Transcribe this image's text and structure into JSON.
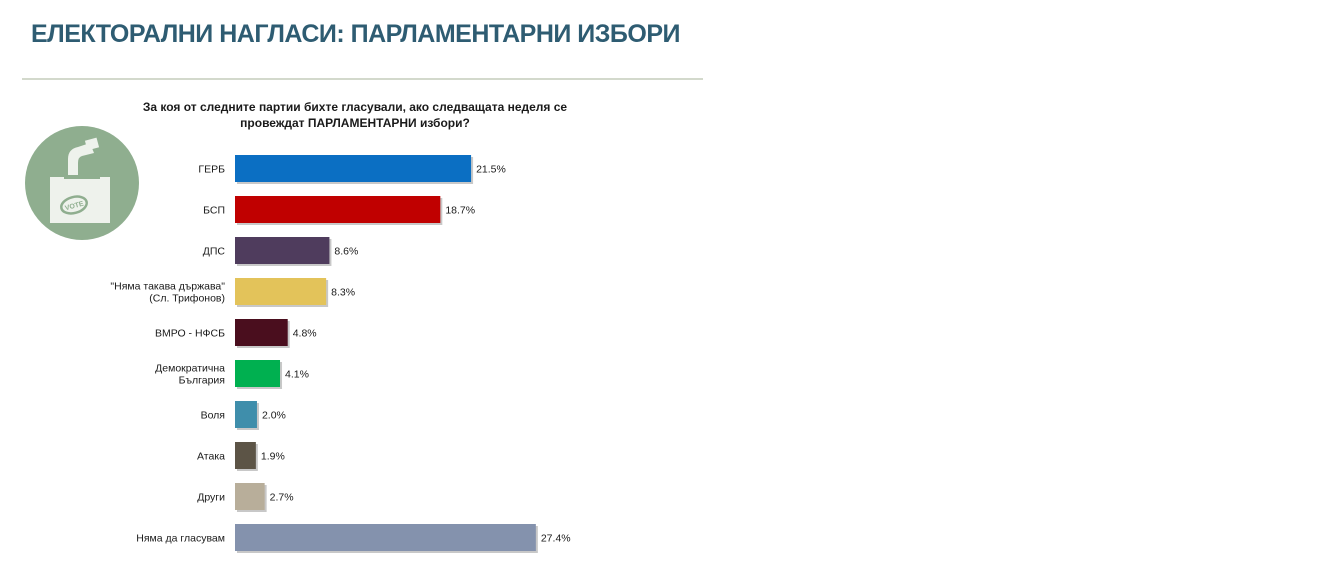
{
  "page": {
    "title": "ЕЛЕКТОРАЛНИ НАГЛАСИ: ПАРЛАМЕНТАРНИ ИЗБОРИ",
    "logo_text": "VOTE",
    "icon": "ballot-box-icon"
  },
  "chart_data": {
    "type": "bar",
    "orientation": "horizontal",
    "title": "За коя от следните партии бихте гласували, ако следващата неделя се провеждат ПАРЛАМЕНТАРНИ избори?",
    "title_lines": [
      "За коя от следните партии бихте гласували, ако следващата неделя се",
      "провеждат ПАРЛАМЕНТАРНИ избори?"
    ],
    "categories": [
      "ГЕРБ",
      "БСП",
      "ДПС",
      "\"Няма такава държава\" (Сл. Трифонов)",
      "ВМРО - НФСБ",
      "Демократична България",
      "Воля",
      "Атака",
      "Други",
      "Няма да гласувам"
    ],
    "category_lines": [
      [
        "ГЕРБ"
      ],
      [
        "БСП"
      ],
      [
        "ДПС"
      ],
      [
        "\"Няма такава държава\"",
        "(Сл. Трифонов)"
      ],
      [
        "ВМРО - НФСБ"
      ],
      [
        "Демократична",
        "България"
      ],
      [
        "Воля"
      ],
      [
        "Атака"
      ],
      [
        "Други"
      ],
      [
        "Няма да гласувам"
      ]
    ],
    "values": [
      21.5,
      18.7,
      8.6,
      8.3,
      4.8,
      4.1,
      2.0,
      1.9,
      2.7,
      27.4
    ],
    "value_labels": [
      "21.5%",
      "18.7%",
      "8.6%",
      "8.3%",
      "4.8%",
      "4.1%",
      "2.0%",
      "1.9%",
      "2.7%",
      "27.4%"
    ],
    "colors": [
      "#0b6fc3",
      "#c00000",
      "#4f3c5d",
      "#e3c35a",
      "#4a0e1e",
      "#00b050",
      "#3f8eab",
      "#5c5446",
      "#b8ae9a",
      "#8492ad"
    ],
    "unit": "%",
    "xlim": [
      0,
      30
    ],
    "grid": false,
    "legend": "none"
  }
}
